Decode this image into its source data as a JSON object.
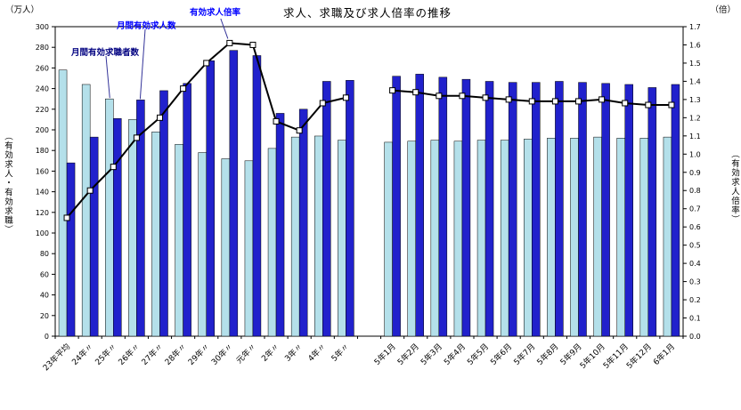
{
  "title": "求人、求職及び求人倍率の推移",
  "axis": {
    "left_unit": "（万人）",
    "right_unit": "（倍）",
    "left_vertical_label": "（有効求人・有効求職）",
    "right_vertical_label": "（有効求人倍率）"
  },
  "annotations": {
    "ratio": "有効求人倍率",
    "openings": "月間有効求人数",
    "seekers": "月間有効求職者数"
  },
  "chart_data": {
    "type": "bar",
    "title": "求人、求職及び求人倍率の推移",
    "categories": [
      "23年平均",
      "24年〃",
      "25年〃",
      "26年〃",
      "27年〃",
      "28年〃",
      "29年〃",
      "30年〃",
      "元年〃",
      "2年〃",
      "3年〃",
      "4年〃",
      "5年〃",
      "5年1月",
      "5年2月",
      "5年3月",
      "5年4月",
      "5年5月",
      "5年6月",
      "5年7月",
      "5年8月",
      "5年9月",
      "5年10月",
      "5年11月",
      "5年12月",
      "6年1月"
    ],
    "series": [
      {
        "name": "月間有効求職者数",
        "type": "bar",
        "axis": "left",
        "color": "#b4e0ea",
        "values": [
          258,
          244,
          230,
          210,
          198,
          186,
          178,
          172,
          170,
          182,
          193,
          194,
          190,
          188,
          189,
          190,
          189,
          190,
          190,
          191,
          192,
          192,
          193,
          192,
          192,
          193
        ]
      },
      {
        "name": "月間有効求人数",
        "type": "bar",
        "axis": "left",
        "color": "#2121cc",
        "values": [
          168,
          193,
          211,
          229,
          238,
          245,
          267,
          277,
          272,
          216,
          220,
          247,
          248,
          252,
          254,
          251,
          249,
          247,
          246,
          246,
          247,
          246,
          245,
          244,
          241,
          244
        ]
      },
      {
        "name": "有効求人倍率",
        "type": "line",
        "axis": "right",
        "color": "#000000",
        "marker": "white-square",
        "values": [
          0.65,
          0.8,
          0.93,
          1.09,
          1.2,
          1.36,
          1.5,
          1.61,
          1.6,
          1.18,
          1.13,
          1.28,
          1.31,
          1.35,
          1.34,
          1.32,
          1.32,
          1.31,
          1.3,
          1.29,
          1.29,
          1.29,
          1.3,
          1.28,
          1.27,
          1.27
        ]
      }
    ],
    "left_axis": {
      "min": 0,
      "max": 300,
      "step": 20,
      "unit": "万人"
    },
    "right_axis": {
      "min": 0,
      "max": 1.7,
      "step": 0.1,
      "unit": "倍"
    },
    "gap_after_index": 12,
    "grid": false,
    "legend_position": "none (in-chart annotations)"
  }
}
